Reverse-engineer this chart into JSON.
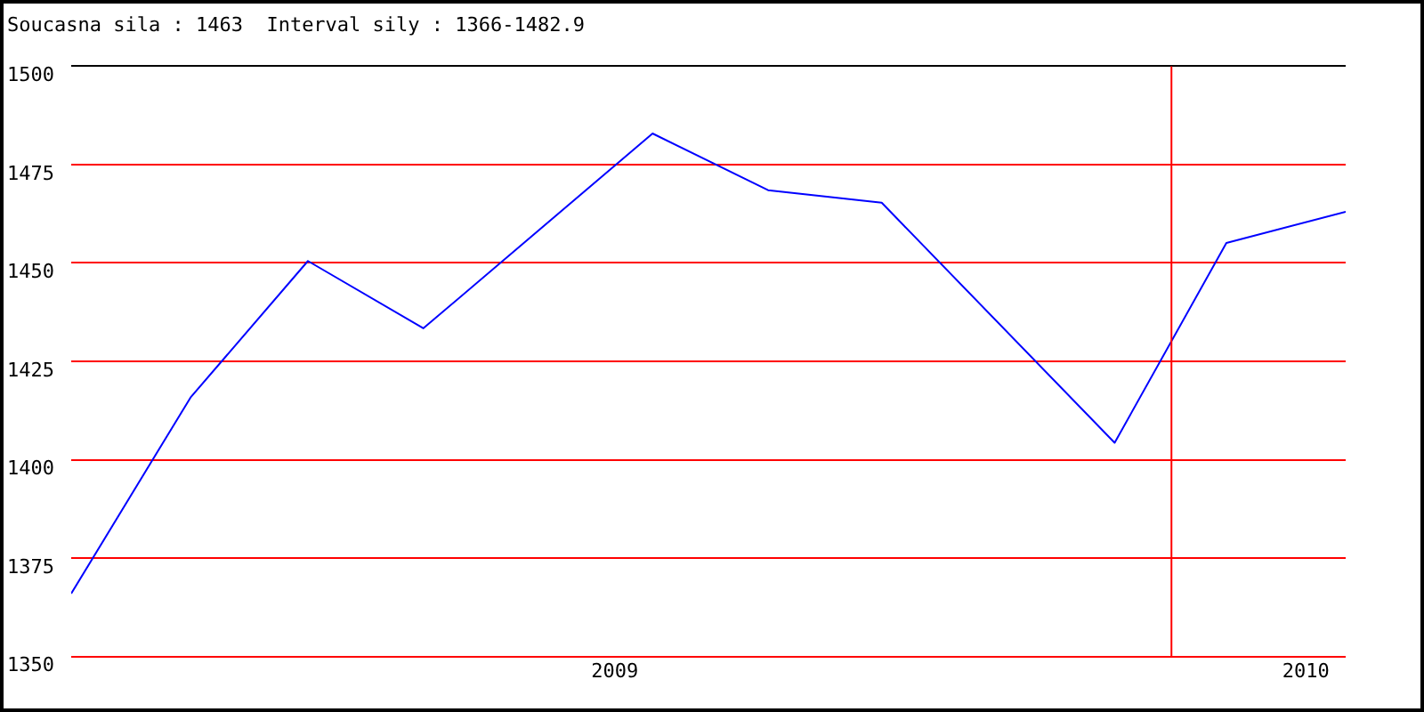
{
  "chart_data": {
    "type": "line",
    "title": "Soucasna sila : 1463  Interval sily : 1366-1482.9",
    "x": [
      "2008-03-20",
      "2008-05-22",
      "2008-07-23",
      "2008-09-22",
      "2009-01-21",
      "2009-03-23",
      "2009-05-22",
      "2009-09-22",
      "2009-11-20",
      "2010-01-22"
    ],
    "series": [
      {
        "color": "#0000ff",
        "values": [
          1366,
          1415.8,
          1450.5,
          1433.4,
          1482.9,
          1468.5,
          1465.3,
          1404.3,
          1455.1,
          1463
        ]
      }
    ],
    "xlim": [
      "2008-03-20",
      "2010-01-22"
    ],
    "xticks": [
      {
        "value": "2009-01-01",
        "label": "2009"
      },
      {
        "value": "2010-01-01",
        "label": "2010"
      }
    ],
    "ylim": [
      1350,
      1500
    ],
    "yticks": [
      1350,
      1375,
      1400,
      1425,
      1450,
      1475,
      1500
    ],
    "ref_lines": [
      {
        "axis": "x",
        "value": "2009-10-22",
        "color": "#ff0000"
      }
    ],
    "grid": "y",
    "legend": false,
    "marker": "none",
    "line_style": "solid"
  }
}
